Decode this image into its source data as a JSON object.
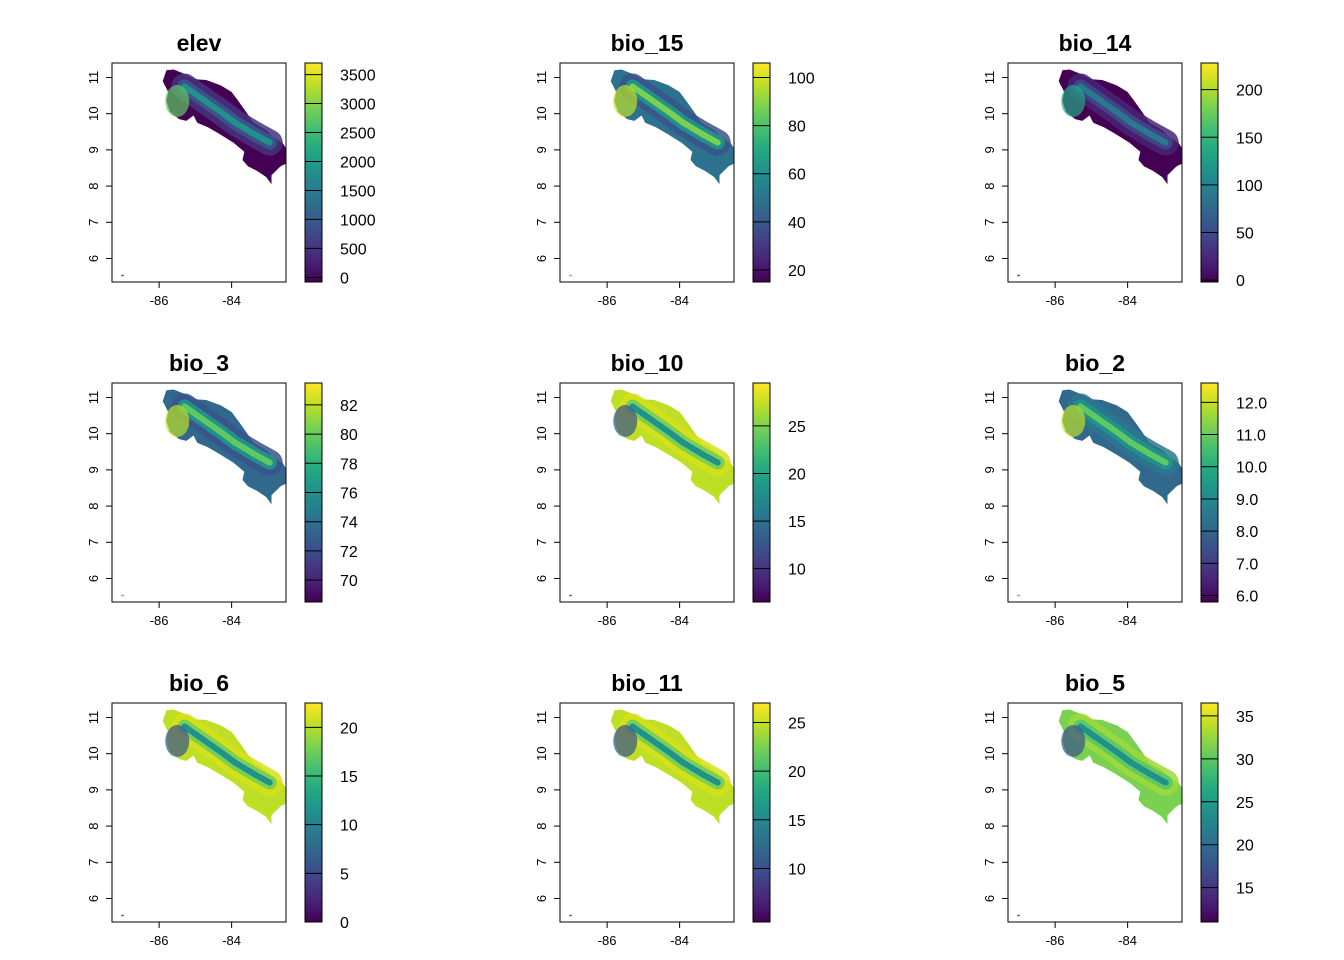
{
  "palette": [
    "#440154",
    "#482475",
    "#414487",
    "#355f8d",
    "#2a788e",
    "#21908d",
    "#22a884",
    "#44bf70",
    "#7ad151",
    "#bddf26",
    "#fde725"
  ],
  "land_color_default": "#3b528b",
  "axis_ticks": {
    "x": {
      "values": [
        -86,
        -84
      ],
      "labels": [
        "-86",
        "-84"
      ]
    },
    "y": {
      "values": [
        6,
        7,
        8,
        9,
        10,
        11
      ],
      "labels": [
        "6",
        "7",
        "8",
        "9",
        "10",
        "11"
      ]
    }
  },
  "chart_data": [
    {
      "type": "heatmap",
      "title": "elev",
      "map_colors": [
        "#440154",
        "#46327e",
        "#3b528b",
        "#21918c",
        "#5ec962"
      ],
      "colorbar": {
        "min": -80,
        "max": 3700,
        "ticks": [
          0,
          500,
          1000,
          1500,
          2000,
          2500,
          3000,
          3500
        ],
        "tick_labels": [
          "0",
          "500",
          "1000",
          "1500",
          "2000",
          "2500",
          "3000",
          "3500"
        ]
      }
    },
    {
      "type": "heatmap",
      "title": "bio_15",
      "map_colors": [
        "#2c728e",
        "#3b528b",
        "#21918c",
        "#7ad151",
        "#bddf26"
      ],
      "colorbar": {
        "min": 15,
        "max": 106,
        "ticks": [
          20,
          40,
          60,
          80,
          100
        ],
        "tick_labels": [
          "20",
          "40",
          "60",
          "80",
          "100"
        ]
      }
    },
    {
      "type": "heatmap",
      "title": "bio_14",
      "map_colors": [
        "#440154",
        "#482475",
        "#414487",
        "#2a788e",
        "#22a884"
      ],
      "colorbar": {
        "min": -2,
        "max": 228,
        "ticks": [
          0,
          50,
          100,
          150,
          200
        ],
        "tick_labels": [
          "0",
          "50",
          "100",
          "150",
          "200"
        ]
      }
    },
    {
      "type": "heatmap",
      "title": "bio_3",
      "map_colors": [
        "#31688e",
        "#3b528b",
        "#21918c",
        "#5ec962",
        "#bddf26"
      ],
      "colorbar": {
        "min": 68.5,
        "max": 83.5,
        "ticks": [
          70,
          72,
          74,
          76,
          78,
          80,
          82
        ],
        "tick_labels": [
          "70",
          "72",
          "74",
          "76",
          "78",
          "80",
          "82"
        ]
      }
    },
    {
      "type": "heatmap",
      "title": "bio_10",
      "map_colors": [
        "#bddf26",
        "#d8e219",
        "#7ad151",
        "#21918c",
        "#3b528b"
      ],
      "colorbar": {
        "min": 6.5,
        "max": 29.5,
        "ticks": [
          10,
          15,
          20,
          25
        ],
        "tick_labels": [
          "10",
          "15",
          "20",
          "25"
        ]
      }
    },
    {
      "type": "heatmap",
      "title": "bio_2",
      "map_colors": [
        "#31688e",
        "#2a788e",
        "#21918c",
        "#5ec962",
        "#bddf26"
      ],
      "colorbar": {
        "min": 5.8,
        "max": 12.6,
        "ticks": [
          6.0,
          7.0,
          8.0,
          9.0,
          10.0,
          11.0,
          12.0
        ],
        "tick_labels": [
          "6.0",
          "7.0",
          "8.0",
          "9.0",
          "10.0",
          "11.0",
          "12.0"
        ]
      }
    },
    {
      "type": "heatmap",
      "title": "bio_6",
      "map_colors": [
        "#bddf26",
        "#d8e219",
        "#7ad151",
        "#21918c",
        "#3b528b"
      ],
      "colorbar": {
        "min": 0,
        "max": 22.5,
        "ticks": [
          0,
          5,
          10,
          15,
          20
        ],
        "tick_labels": [
          "0",
          "5",
          "10",
          "15",
          "20"
        ]
      }
    },
    {
      "type": "heatmap",
      "title": "bio_11",
      "map_colors": [
        "#bddf26",
        "#d8e219",
        "#7ad151",
        "#21918c",
        "#3b528b"
      ],
      "colorbar": {
        "min": 4.5,
        "max": 27,
        "ticks": [
          10,
          15,
          20,
          25
        ],
        "tick_labels": [
          "10",
          "15",
          "20",
          "25"
        ]
      }
    },
    {
      "type": "heatmap",
      "title": "bio_5",
      "map_colors": [
        "#7ad151",
        "#a0da39",
        "#5ec962",
        "#21918c",
        "#3b528b"
      ],
      "colorbar": {
        "min": 11,
        "max": 36.5,
        "ticks": [
          15,
          20,
          25,
          30,
          35
        ],
        "tick_labels": [
          "15",
          "20",
          "25",
          "30",
          "35"
        ]
      }
    }
  ]
}
